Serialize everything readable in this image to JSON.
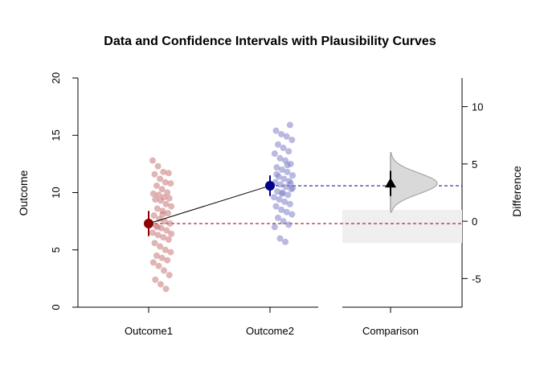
{
  "chart_data": {
    "type": "scatter",
    "title": "Data and Confidence Intervals with Plausibility Curves",
    "ylabel": "Outcome",
    "y2label": "Difference",
    "categories": [
      "Outcome1",
      "Outcome2",
      "Comparison"
    ],
    "ylim": [
      0,
      20
    ],
    "yticks": [
      0,
      5,
      10,
      15,
      20
    ],
    "y2lim": [
      -7.5,
      12.5
    ],
    "y2ticks": [
      -5,
      0,
      5,
      10
    ],
    "colors": {
      "outcome1": "#8b0000",
      "outcome1_points": "#c87878",
      "outcome2": "#00008b",
      "outcome2_points": "#8080c8",
      "comparison": "#000000",
      "curve_fill": "#d9d9d9",
      "band_fill": "#efefef"
    },
    "series": [
      {
        "name": "Outcome1",
        "mean": 7.3,
        "ci": [
          6.2,
          8.4
        ],
        "points": [
          12.8,
          12.3,
          11.8,
          11.7,
          11.6,
          11.2,
          10.9,
          10.8,
          10.6,
          10.3,
          10.0,
          9.9,
          9.8,
          9.6,
          9.5,
          9.4,
          9.3,
          9.0,
          8.8,
          8.6,
          8.4,
          8.2,
          8.0,
          7.7,
          7.5,
          7.3,
          7.1,
          6.9,
          6.7,
          6.5,
          6.3,
          6.1,
          5.9,
          5.6,
          5.3,
          5.0,
          4.8,
          4.5,
          4.3,
          4.1,
          3.9,
          3.6,
          3.2,
          2.8,
          2.4,
          2.0,
          1.6,
          6.4,
          7.0,
          8.1
        ]
      },
      {
        "name": "Outcome2",
        "mean": 10.6,
        "ci": [
          9.7,
          11.5
        ],
        "points": [
          15.9,
          15.4,
          15.1,
          14.9,
          14.6,
          14.2,
          13.9,
          13.6,
          13.4,
          13.0,
          12.8,
          12.5,
          12.2,
          12.0,
          11.8,
          11.5,
          11.4,
          11.2,
          11.0,
          10.9,
          10.7,
          10.5,
          10.3,
          10.1,
          10.0,
          9.8,
          9.6,
          9.4,
          9.2,
          9.0,
          8.8,
          8.5,
          8.3,
          8.1,
          7.8,
          7.5,
          7.2,
          7.0,
          6.0,
          5.7,
          10.8,
          11.6,
          9.9,
          12.4,
          10.4
        ]
      }
    ],
    "difference": {
      "estimate": 3.3,
      "ci": [
        2.2,
        4.4
      ],
      "range": [
        1.0,
        5.8
      ],
      "se": 0.57
    }
  }
}
